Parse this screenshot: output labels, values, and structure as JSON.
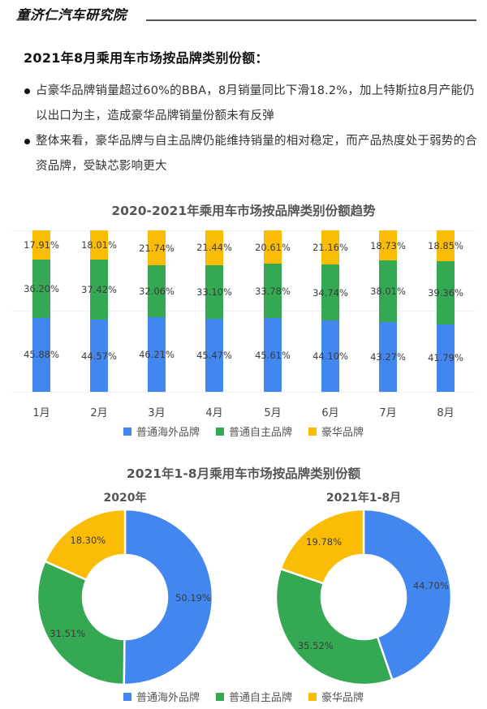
{
  "header": {
    "brand": "童济仁汽车研究院"
  },
  "section": {
    "title": "2021年8月乘用车市场按品牌类别份额："
  },
  "bullets": [
    "占豪华品牌销量超过60%的BBA，8月销量同比下滑18.2%，加上特斯拉8月产能仍以出口为主，造成豪华品牌销量份额未有反弹",
    "整体来看，豪华品牌与自主品牌仍能维持销量的相对稳定，而产品热度处于弱势的合资品牌，受缺芯影响更大"
  ],
  "colors": {
    "overseas": "#4286f0",
    "domestic": "#34a853",
    "luxury": "#fbbc05"
  },
  "legend": [
    {
      "label": "普通海外品牌",
      "color": "#4286f0"
    },
    {
      "label": "普通自主品牌",
      "color": "#34a853"
    },
    {
      "label": "豪华品牌",
      "color": "#fbbc05"
    }
  ],
  "chart_data": [
    {
      "type": "bar",
      "stacked": true,
      "normalized": true,
      "title": "2020-2021年乘用车市场按品牌类别份额趋势",
      "categories": [
        "1月",
        "2月",
        "3月",
        "4月",
        "5月",
        "6月",
        "7月",
        "8月"
      ],
      "series": [
        {
          "name": "普通海外品牌",
          "color": "#4286f0",
          "values": [
            45.88,
            44.57,
            46.21,
            45.47,
            45.61,
            44.1,
            43.27,
            41.79
          ]
        },
        {
          "name": "普通自主品牌",
          "color": "#34a853",
          "values": [
            36.2,
            37.42,
            32.06,
            33.1,
            33.78,
            34.74,
            38.01,
            39.36
          ]
        },
        {
          "name": "豪华品牌",
          "color": "#fbbc05",
          "values": [
            17.91,
            18.01,
            21.74,
            21.44,
            20.61,
            21.16,
            18.73,
            18.85
          ]
        }
      ],
      "labels": {
        "overseas": [
          "45.88%",
          "44.57%",
          "46.21%",
          "45.47%",
          "45.61%",
          "44.10%",
          "43.27%",
          "41.79%"
        ],
        "domestic": [
          "36.20%",
          "37.42%",
          "32.06%",
          "33.10%",
          "33.78%",
          "34.74%",
          "38.01%",
          "39.36%"
        ],
        "luxury": [
          "17.91%",
          "18.01%",
          "21.74%",
          "21.44%",
          "20.61%",
          "21.16%",
          "18.73%",
          "18.85%"
        ]
      },
      "xlabel": "",
      "ylabel": "",
      "ylim": [
        0,
        100
      ],
      "grid": true,
      "legend_position": "bottom"
    },
    {
      "type": "pie",
      "donut": true,
      "title": "2021年1-8月乘用车市场按品牌类别份额",
      "subtitle": "2020年",
      "categories": [
        "普通海外品牌",
        "普通自主品牌",
        "豪华品牌"
      ],
      "values": [
        50.19,
        31.51,
        18.3
      ],
      "labels": [
        "50.19%",
        "31.51%",
        "18.30%"
      ],
      "legend_position": "bottom"
    },
    {
      "type": "pie",
      "donut": true,
      "title": "2021年1-8月乘用车市场按品牌类别份额",
      "subtitle": "2021年1-8月",
      "categories": [
        "普通海外品牌",
        "普通自主品牌",
        "豪华品牌"
      ],
      "values": [
        44.7,
        35.52,
        19.78
      ],
      "labels": [
        "44.70%",
        "35.52%",
        "19.78%"
      ],
      "legend_position": "bottom"
    }
  ]
}
